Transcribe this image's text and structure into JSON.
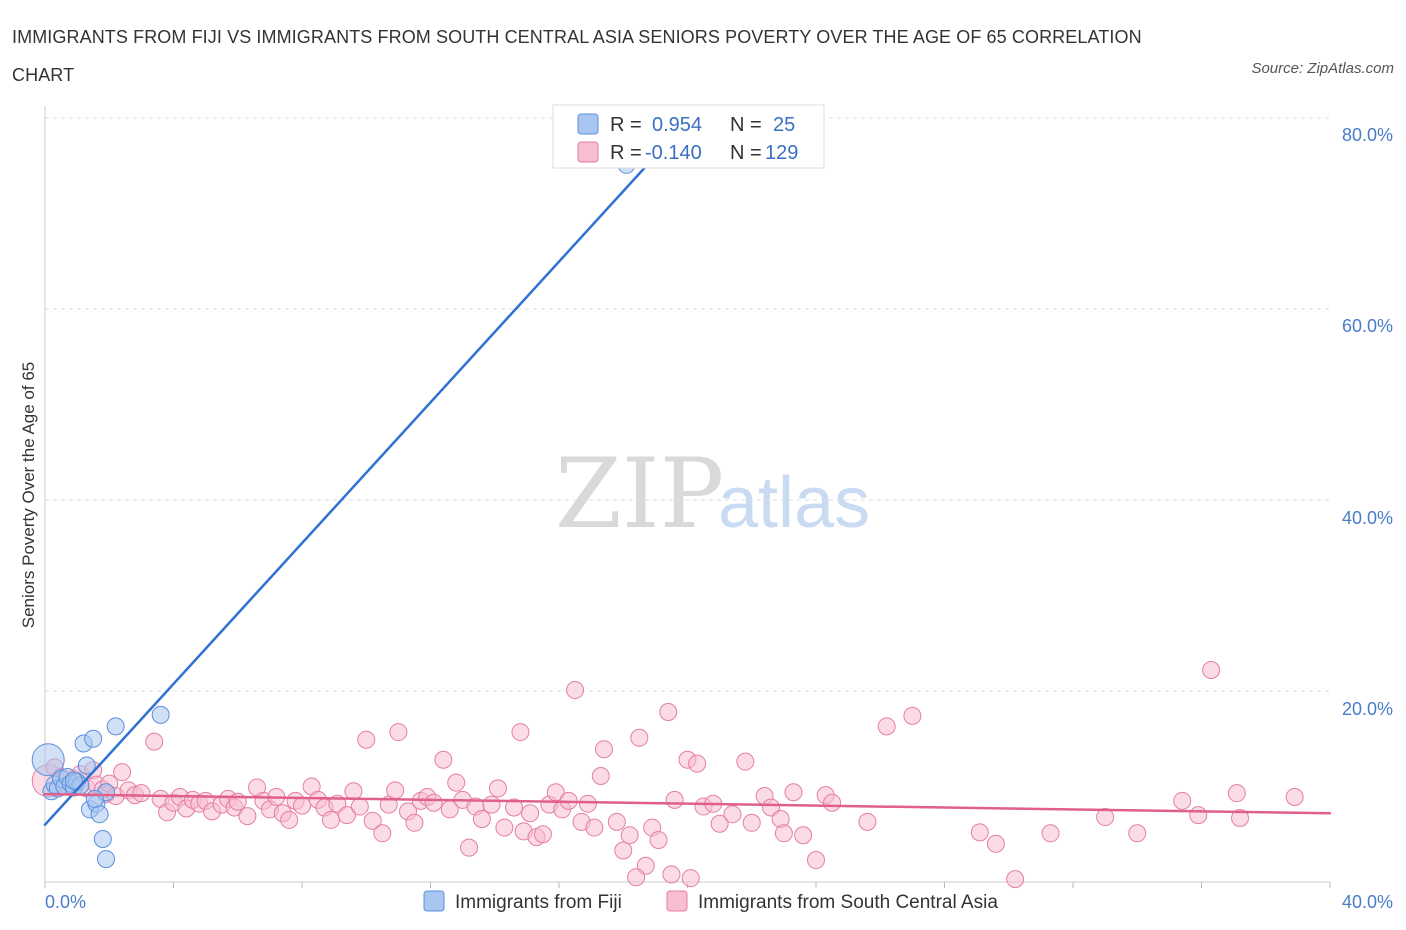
{
  "title": "IMMIGRANTS FROM FIJI VS IMMIGRANTS FROM SOUTH CENTRAL ASIA SENIORS POVERTY OVER THE AGE OF 65 CORRELATION CHART",
  "source": "Source: ZipAtlas.com",
  "watermark": {
    "zip": "ZIP",
    "atlas": "atlas"
  },
  "legend_top": {
    "r_label": "R =",
    "n_label": "N =",
    "rows": [
      {
        "r": "0.954",
        "n": "25"
      },
      {
        "r": "-0.140",
        "n": "129"
      }
    ]
  },
  "colors": {
    "fiji_fill": "#a8c6f0",
    "fiji_stroke": "#5b8fdc",
    "fiji_line": "#2f72d2",
    "sca_fill": "#f7bdd0",
    "sca_stroke": "#e57fa2",
    "sca_line": "#e0608a",
    "grid": "#dddddd",
    "axis_text": "#4a7cc9"
  },
  "chart_data": {
    "type": "scatter",
    "title": "IMMIGRANTS FROM FIJI VS IMMIGRANTS FROM SOUTH CENTRAL ASIA SENIORS POVERTY OVER THE AGE OF 65 CORRELATION CHART",
    "xlabel": "",
    "ylabel": "Seniors Poverty Over the Age of 65",
    "xlim": [
      0,
      40
    ],
    "ylim": [
      0,
      80
    ],
    "x_tick_labels": [
      "0.0%",
      "40.0%"
    ],
    "y_ticks": [
      20,
      40,
      60,
      80
    ],
    "y_tick_labels": [
      "20.0%",
      "40.0%",
      "60.0%",
      "80.0%"
    ],
    "grid": true,
    "legend_position": "bottom",
    "series": [
      {
        "name": "Immigrants from Fiji",
        "R": 0.954,
        "N": 25,
        "trend": {
          "x": [
            0,
            20.0
          ],
          "y": [
            6.0,
            79.7
          ]
        },
        "points": [
          {
            "x": 0.1,
            "y": 12.8,
            "big": true
          },
          {
            "x": 0.2,
            "y": 9.5
          },
          {
            "x": 0.3,
            "y": 10.2
          },
          {
            "x": 0.4,
            "y": 9.8
          },
          {
            "x": 0.5,
            "y": 10.8
          },
          {
            "x": 0.6,
            "y": 10.0
          },
          {
            "x": 0.7,
            "y": 11.0
          },
          {
            "x": 0.8,
            "y": 10.3
          },
          {
            "x": 0.9,
            "y": 9.9
          },
          {
            "x": 1.0,
            "y": 10.5
          },
          {
            "x": 1.1,
            "y": 10.1
          },
          {
            "x": 1.2,
            "y": 14.5
          },
          {
            "x": 1.3,
            "y": 12.2
          },
          {
            "x": 1.4,
            "y": 7.6
          },
          {
            "x": 1.5,
            "y": 15.0
          },
          {
            "x": 1.6,
            "y": 8.2
          },
          {
            "x": 1.7,
            "y": 7.1
          },
          {
            "x": 1.8,
            "y": 4.5
          },
          {
            "x": 1.9,
            "y": 2.4
          },
          {
            "x": 1.9,
            "y": 9.4
          },
          {
            "x": 2.2,
            "y": 16.3
          },
          {
            "x": 3.6,
            "y": 17.5
          },
          {
            "x": 18.1,
            "y": 75.1
          },
          {
            "x": 0.9,
            "y": 10.6
          },
          {
            "x": 1.55,
            "y": 8.7
          }
        ]
      },
      {
        "name": "Immigrants from South Central Asia",
        "R": -0.14,
        "N": 129,
        "trend": {
          "x": [
            0,
            40.0
          ],
          "y": [
            9.2,
            7.2
          ]
        },
        "points": [
          {
            "x": 0.1,
            "y": 10.6,
            "big": true
          },
          {
            "x": 0.3,
            "y": 12.0
          },
          {
            "x": 0.5,
            "y": 11.0
          },
          {
            "x": 0.7,
            "y": 10.1
          },
          {
            "x": 0.9,
            "y": 10.8
          },
          {
            "x": 1.1,
            "y": 11.3
          },
          {
            "x": 1.3,
            "y": 9.8
          },
          {
            "x": 1.5,
            "y": 11.7
          },
          {
            "x": 1.6,
            "y": 10.2
          },
          {
            "x": 1.8,
            "y": 9.7
          },
          {
            "x": 1.9,
            "y": 9.2
          },
          {
            "x": 2.0,
            "y": 10.3
          },
          {
            "x": 2.2,
            "y": 9.0
          },
          {
            "x": 2.4,
            "y": 11.5
          },
          {
            "x": 2.6,
            "y": 9.6
          },
          {
            "x": 2.8,
            "y": 9.1
          },
          {
            "x": 3.0,
            "y": 9.3
          },
          {
            "x": 3.4,
            "y": 14.7
          },
          {
            "x": 3.6,
            "y": 8.7
          },
          {
            "x": 3.8,
            "y": 7.3
          },
          {
            "x": 4.0,
            "y": 8.3
          },
          {
            "x": 4.2,
            "y": 8.9
          },
          {
            "x": 4.4,
            "y": 7.7
          },
          {
            "x": 4.6,
            "y": 8.6
          },
          {
            "x": 4.8,
            "y": 8.2
          },
          {
            "x": 5.0,
            "y": 8.5
          },
          {
            "x": 5.2,
            "y": 7.4
          },
          {
            "x": 5.5,
            "y": 8.1
          },
          {
            "x": 5.7,
            "y": 8.7
          },
          {
            "x": 5.9,
            "y": 7.8
          },
          {
            "x": 6.0,
            "y": 8.4
          },
          {
            "x": 6.3,
            "y": 6.9
          },
          {
            "x": 6.6,
            "y": 9.9
          },
          {
            "x": 6.8,
            "y": 8.5
          },
          {
            "x": 7.0,
            "y": 7.6
          },
          {
            "x": 7.2,
            "y": 8.9
          },
          {
            "x": 7.4,
            "y": 7.2
          },
          {
            "x": 7.6,
            "y": 6.5
          },
          {
            "x": 7.8,
            "y": 8.5
          },
          {
            "x": 8.0,
            "y": 8.0
          },
          {
            "x": 8.3,
            "y": 10.0
          },
          {
            "x": 8.5,
            "y": 8.6
          },
          {
            "x": 8.7,
            "y": 7.8
          },
          {
            "x": 8.9,
            "y": 6.5
          },
          {
            "x": 9.1,
            "y": 8.2
          },
          {
            "x": 9.4,
            "y": 7.0
          },
          {
            "x": 9.6,
            "y": 9.5
          },
          {
            "x": 9.8,
            "y": 7.9
          },
          {
            "x": 10.0,
            "y": 14.9
          },
          {
            "x": 10.2,
            "y": 6.4
          },
          {
            "x": 10.5,
            "y": 5.1
          },
          {
            "x": 10.7,
            "y": 8.1
          },
          {
            "x": 10.9,
            "y": 9.6
          },
          {
            "x": 11.0,
            "y": 15.7
          },
          {
            "x": 11.3,
            "y": 7.4
          },
          {
            "x": 11.5,
            "y": 6.2
          },
          {
            "x": 11.7,
            "y": 8.5
          },
          {
            "x": 11.9,
            "y": 8.9
          },
          {
            "x": 12.1,
            "y": 8.3
          },
          {
            "x": 12.4,
            "y": 12.8
          },
          {
            "x": 12.6,
            "y": 7.6
          },
          {
            "x": 12.8,
            "y": 10.4
          },
          {
            "x": 13.0,
            "y": 8.6
          },
          {
            "x": 13.2,
            "y": 3.6
          },
          {
            "x": 13.4,
            "y": 7.9
          },
          {
            "x": 13.6,
            "y": 6.6
          },
          {
            "x": 13.9,
            "y": 8.1
          },
          {
            "x": 14.1,
            "y": 9.8
          },
          {
            "x": 14.3,
            "y": 5.7
          },
          {
            "x": 14.6,
            "y": 7.8
          },
          {
            "x": 14.8,
            "y": 15.7
          },
          {
            "x": 14.9,
            "y": 5.3
          },
          {
            "x": 15.1,
            "y": 7.2
          },
          {
            "x": 15.3,
            "y": 4.7
          },
          {
            "x": 15.5,
            "y": 5.0
          },
          {
            "x": 15.7,
            "y": 8.1
          },
          {
            "x": 15.9,
            "y": 9.4
          },
          {
            "x": 16.1,
            "y": 7.6
          },
          {
            "x": 16.3,
            "y": 8.5
          },
          {
            "x": 16.5,
            "y": 20.1
          },
          {
            "x": 16.7,
            "y": 6.3
          },
          {
            "x": 16.9,
            "y": 8.2
          },
          {
            "x": 17.1,
            "y": 5.7
          },
          {
            "x": 17.3,
            "y": 11.1
          },
          {
            "x": 17.4,
            "y": 13.9
          },
          {
            "x": 17.8,
            "y": 6.3
          },
          {
            "x": 18.0,
            "y": 3.3
          },
          {
            "x": 18.2,
            "y": 4.9
          },
          {
            "x": 18.5,
            "y": 15.1
          },
          {
            "x": 18.7,
            "y": 1.7
          },
          {
            "x": 18.9,
            "y": 5.7
          },
          {
            "x": 19.1,
            "y": 4.4
          },
          {
            "x": 19.4,
            "y": 17.8
          },
          {
            "x": 19.6,
            "y": 8.6
          },
          {
            "x": 20.0,
            "y": 12.8
          },
          {
            "x": 20.3,
            "y": 12.4
          },
          {
            "x": 20.5,
            "y": 7.9
          },
          {
            "x": 20.8,
            "y": 8.2
          },
          {
            "x": 21.0,
            "y": 6.1
          },
          {
            "x": 21.4,
            "y": 7.1
          },
          {
            "x": 21.8,
            "y": 12.6
          },
          {
            "x": 22.0,
            "y": 6.2
          },
          {
            "x": 22.4,
            "y": 9.0
          },
          {
            "x": 22.6,
            "y": 7.8
          },
          {
            "x": 22.9,
            "y": 6.6
          },
          {
            "x": 23.0,
            "y": 5.1
          },
          {
            "x": 23.3,
            "y": 9.4
          },
          {
            "x": 23.6,
            "y": 4.9
          },
          {
            "x": 24.0,
            "y": 2.3
          },
          {
            "x": 24.3,
            "y": 9.1
          },
          {
            "x": 24.5,
            "y": 8.3
          },
          {
            "x": 25.6,
            "y": 6.3
          },
          {
            "x": 26.2,
            "y": 16.3
          },
          {
            "x": 27.0,
            "y": 17.4
          },
          {
            "x": 29.1,
            "y": 5.2
          },
          {
            "x": 29.6,
            "y": 4.0
          },
          {
            "x": 31.3,
            "y": 5.1
          },
          {
            "x": 33.0,
            "y": 6.8
          },
          {
            "x": 34.0,
            "y": 5.1
          },
          {
            "x": 35.4,
            "y": 8.5
          },
          {
            "x": 35.9,
            "y": 7.0
          },
          {
            "x": 36.3,
            "y": 22.2
          },
          {
            "x": 37.1,
            "y": 9.3
          },
          {
            "x": 37.2,
            "y": 6.7
          },
          {
            "x": 38.9,
            "y": 8.9
          },
          {
            "x": 18.4,
            "y": 0.5
          },
          {
            "x": 19.5,
            "y": 0.8
          },
          {
            "x": 20.1,
            "y": 0.4
          },
          {
            "x": 30.2,
            "y": 0.3
          }
        ]
      }
    ]
  },
  "legend_bottom": [
    {
      "label": "Immigrants from Fiji"
    },
    {
      "label": "Immigrants from South Central Asia"
    }
  ]
}
